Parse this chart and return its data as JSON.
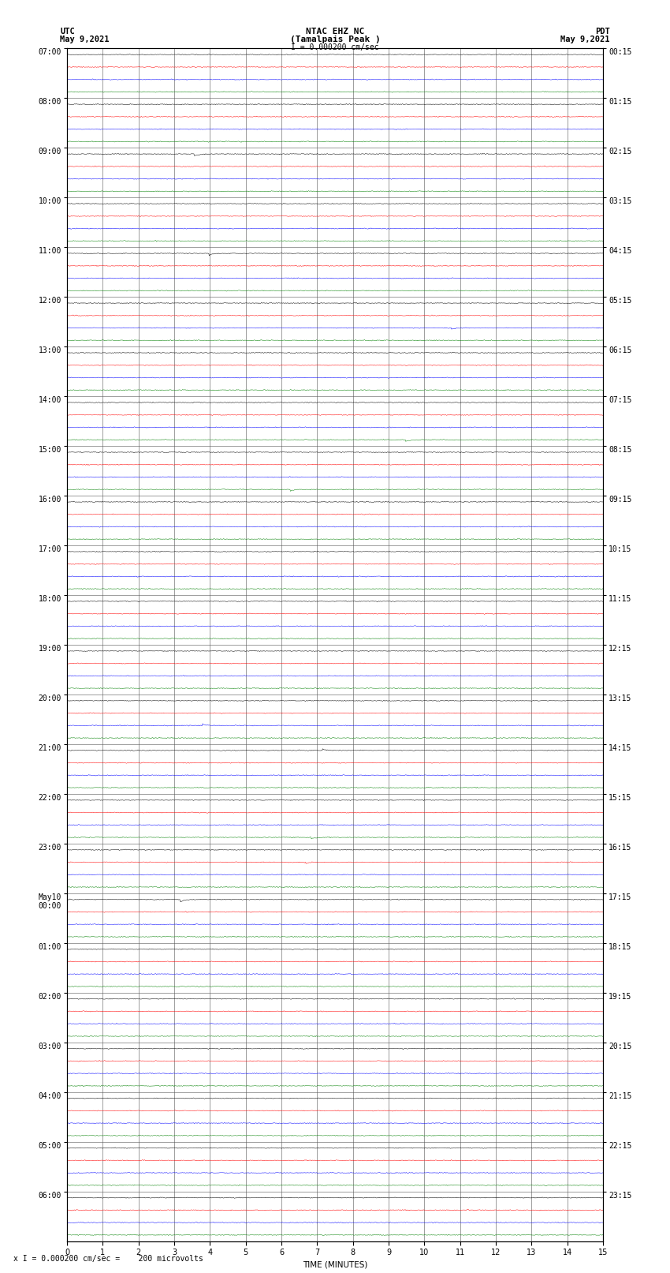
{
  "title_line1": "NTAC EHZ NC",
  "title_line2": "(Tamalpais Peak )",
  "title_line3": "I = 0.000200 cm/sec",
  "left_label_line1": "UTC",
  "left_label_line2": "May 9,2021",
  "right_label_line1": "PDT",
  "right_label_line2": "May 9,2021",
  "xlabel": "TIME (MINUTES)",
  "bottom_label": "x I = 0.000200 cm/sec =    200 microvolts",
  "x_min": 0,
  "x_max": 15,
  "trace_colors": [
    "black",
    "red",
    "blue",
    "green"
  ],
  "background_color": "white",
  "num_rows": 24,
  "traces_per_row": 4,
  "fig_width": 8.5,
  "fig_height": 16.13,
  "noise_amplitude": 0.025,
  "grid_color": "#555555",
  "title_fontsize": 8,
  "label_fontsize": 7.5,
  "tick_fontsize": 7,
  "utc_labels": [
    "07:00",
    "08:00",
    "09:00",
    "10:00",
    "11:00",
    "12:00",
    "13:00",
    "14:00",
    "15:00",
    "16:00",
    "17:00",
    "18:00",
    "19:00",
    "20:00",
    "21:00",
    "22:00",
    "23:00",
    "May10\n00:00",
    "01:00",
    "02:00",
    "03:00",
    "04:00",
    "05:00",
    "06:00"
  ],
  "pdt_labels": [
    "00:15",
    "01:15",
    "02:15",
    "03:15",
    "04:15",
    "05:15",
    "06:15",
    "07:15",
    "08:15",
    "09:15",
    "10:15",
    "11:15",
    "12:15",
    "13:15",
    "14:15",
    "15:15",
    "16:15",
    "17:15",
    "18:15",
    "19:15",
    "20:15",
    "21:15",
    "22:15",
    "23:15"
  ]
}
